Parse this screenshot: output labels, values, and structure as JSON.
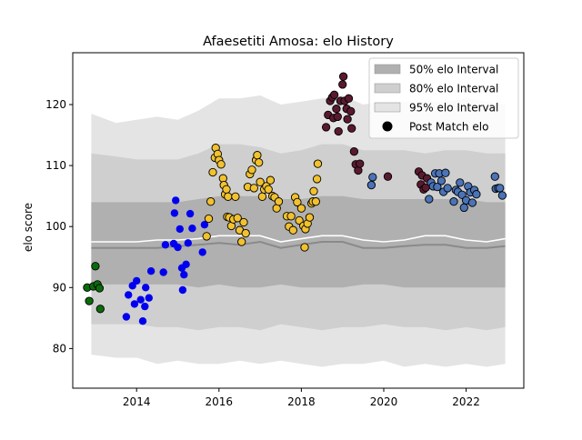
{
  "chart_data": {
    "type": "scatter",
    "title": "Afaesetiti Amosa: elo History",
    "xlabel": "",
    "ylabel": "elo score",
    "xlim": [
      2012.45,
      2023.4
    ],
    "ylim": [
      73.5,
      128.5
    ],
    "x_ticks": [
      2014,
      2016,
      2018,
      2020,
      2022
    ],
    "y_ticks": [
      80,
      90,
      100,
      110,
      120
    ],
    "legend": {
      "position": "top-right",
      "entries": [
        {
          "label": "50% elo Interval",
          "swatch": "#b0b0b0"
        },
        {
          "label": "80% elo Interval",
          "swatch": "#cfcfcf"
        },
        {
          "label": "95% elo Interval",
          "swatch": "#e4e4e4"
        },
        {
          "label": "Post Match elo",
          "swatch": "#000000"
        }
      ]
    },
    "bands": {
      "x": [
        2012.9,
        2013.5,
        2014.0,
        2014.5,
        2015.0,
        2015.5,
        2016.0,
        2016.5,
        2017.0,
        2017.5,
        2018.0,
        2018.5,
        2019.0,
        2019.5,
        2020.0,
        2020.5,
        2021.0,
        2021.5,
        2022.0,
        2022.5,
        2022.95
      ],
      "p95_low": [
        79,
        78.5,
        78.5,
        77.5,
        78,
        77.5,
        77.5,
        78,
        77.5,
        78,
        77.5,
        77,
        77.5,
        77.5,
        78,
        77,
        77.5,
        77,
        77.5,
        77,
        77.5
      ],
      "p95_high": [
        118.5,
        117,
        117.5,
        118,
        117.5,
        119,
        121,
        121,
        121.5,
        120,
        120.5,
        121,
        121.5,
        120,
        120.5,
        120.5,
        120.5,
        120.5,
        121,
        120.5,
        120
      ],
      "p80_low": [
        84,
        84,
        84,
        83.5,
        83.5,
        83,
        83.5,
        83.5,
        83,
        84,
        83.5,
        83,
        83.5,
        83.5,
        84,
        83.5,
        83.5,
        83,
        83.5,
        83,
        83.5
      ],
      "p80_high": [
        112,
        111.5,
        111,
        111,
        111,
        112,
        113.5,
        113.5,
        113,
        112,
        112.5,
        113.5,
        113.5,
        112.5,
        112.5,
        112.5,
        112,
        112.5,
        112.5,
        112,
        112
      ],
      "p50_low": [
        90.5,
        90.5,
        90.5,
        90.5,
        90.5,
        90,
        90.5,
        90,
        90,
        90.5,
        90,
        90,
        90,
        90.5,
        90.5,
        90,
        90,
        90,
        90,
        90,
        90
      ],
      "p50_high": [
        104,
        104,
        104,
        104,
        104,
        104.5,
        105,
        105,
        105,
        104.5,
        104.5,
        105,
        105,
        104.5,
        104.5,
        104.5,
        104.5,
        104.5,
        104.5,
        104,
        104
      ],
      "median": [
        96.5,
        96.5,
        96.5,
        96.5,
        96.8,
        97,
        97.3,
        97,
        97.5,
        96.5,
        97,
        97.5,
        97.5,
        96.5,
        96.5,
        96.8,
        97,
        97,
        96.5,
        96.5,
        96.8
      ],
      "mean": [
        97.5,
        97.5,
        97.5,
        97.8,
        97.8,
        98,
        98.5,
        98.5,
        98.5,
        97.5,
        98,
        98.5,
        98.5,
        97.8,
        97.5,
        97.8,
        98.5,
        98.5,
        97.8,
        97.5,
        98
      ]
    },
    "series": [
      {
        "color": "#0a6b0a",
        "points": [
          [
            2012.8,
            90
          ],
          [
            2012.85,
            87.8
          ],
          [
            2012.95,
            90.2
          ],
          [
            2013.0,
            93.5
          ],
          [
            2013.05,
            90.5
          ],
          [
            2013.1,
            89.9
          ],
          [
            2013.12,
            86.5
          ]
        ]
      },
      {
        "color": "#0000ee",
        "points": [
          [
            2013.75,
            85.2
          ],
          [
            2013.8,
            88.8
          ],
          [
            2013.9,
            90.3
          ],
          [
            2013.95,
            87.3
          ],
          [
            2014.0,
            91.1
          ],
          [
            2014.1,
            88.0
          ],
          [
            2014.15,
            84.5
          ],
          [
            2014.2,
            86.9
          ],
          [
            2014.22,
            90.0
          ],
          [
            2014.3,
            88.3
          ],
          [
            2014.35,
            92.7
          ],
          [
            2014.65,
            92.5
          ],
          [
            2014.7,
            97.0
          ],
          [
            2014.9,
            97.2
          ],
          [
            2014.92,
            102.2
          ],
          [
            2014.95,
            104.3
          ],
          [
            2015.0,
            96.6
          ],
          [
            2015.05,
            99.6
          ],
          [
            2015.1,
            93.2
          ],
          [
            2015.12,
            89.6
          ],
          [
            2015.15,
            92.1
          ],
          [
            2015.2,
            93.8
          ],
          [
            2015.25,
            97.3
          ],
          [
            2015.3,
            102.1
          ],
          [
            2015.35,
            99.7
          ],
          [
            2015.6,
            95.8
          ],
          [
            2015.65,
            100.3
          ]
        ]
      },
      {
        "color": "#f2c12e",
        "points": [
          [
            2015.7,
            98.4
          ],
          [
            2015.75,
            101.3
          ],
          [
            2015.8,
            104.1
          ],
          [
            2015.85,
            108.9
          ],
          [
            2015.9,
            111.3
          ],
          [
            2015.92,
            112.9
          ],
          [
            2015.97,
            111.9
          ],
          [
            2016.0,
            110.9
          ],
          [
            2016.05,
            110.2
          ],
          [
            2016.1,
            107.9
          ],
          [
            2016.12,
            106.8
          ],
          [
            2016.15,
            105.3
          ],
          [
            2016.18,
            106.1
          ],
          [
            2016.2,
            101.6
          ],
          [
            2016.22,
            104.9
          ],
          [
            2016.25,
            101.5
          ],
          [
            2016.3,
            100.1
          ],
          [
            2016.35,
            101.2
          ],
          [
            2016.4,
            104.9
          ],
          [
            2016.45,
            101.4
          ],
          [
            2016.5,
            99.4
          ],
          [
            2016.55,
            97.5
          ],
          [
            2016.6,
            100.7
          ],
          [
            2016.65,
            98.9
          ],
          [
            2016.7,
            106.5
          ],
          [
            2016.75,
            108.6
          ],
          [
            2016.8,
            109.3
          ],
          [
            2016.85,
            106.3
          ],
          [
            2016.9,
            110.9
          ],
          [
            2016.93,
            111.7
          ],
          [
            2016.97,
            110.5
          ],
          [
            2017.0,
            107.3
          ],
          [
            2017.05,
            104.9
          ],
          [
            2017.1,
            106.1
          ],
          [
            2017.15,
            106.6
          ],
          [
            2017.2,
            106.1
          ],
          [
            2017.25,
            107.6
          ],
          [
            2017.3,
            105.0
          ],
          [
            2017.35,
            104.8
          ],
          [
            2017.4,
            103.0
          ],
          [
            2017.45,
            104.1
          ],
          [
            2017.65,
            101.7
          ],
          [
            2017.7,
            100.0
          ],
          [
            2017.75,
            101.7
          ],
          [
            2017.8,
            99.4
          ],
          [
            2017.85,
            104.8
          ],
          [
            2017.9,
            104.0
          ],
          [
            2017.95,
            101.0
          ],
          [
            2018.0,
            103.0
          ],
          [
            2018.05,
            100.1
          ],
          [
            2018.08,
            96.6
          ],
          [
            2018.1,
            99.6
          ],
          [
            2018.15,
            100.5
          ],
          [
            2018.2,
            101.5
          ],
          [
            2018.25,
            103.8
          ],
          [
            2018.28,
            104.1
          ],
          [
            2018.3,
            105.8
          ],
          [
            2018.35,
            104.1
          ],
          [
            2018.38,
            107.8
          ],
          [
            2018.4,
            110.3
          ]
        ]
      },
      {
        "color": "#5a1a2e",
        "points": [
          [
            2018.6,
            116.3
          ],
          [
            2018.65,
            118.3
          ],
          [
            2018.7,
            120.6
          ],
          [
            2018.75,
            121.2
          ],
          [
            2018.78,
            117.8
          ],
          [
            2018.8,
            121.6
          ],
          [
            2018.85,
            119.3
          ],
          [
            2018.88,
            118.0
          ],
          [
            2018.9,
            115.6
          ],
          [
            2018.95,
            120.6
          ],
          [
            2019.0,
            123.3
          ],
          [
            2019.02,
            124.6
          ],
          [
            2019.05,
            120.6
          ],
          [
            2019.1,
            119.3
          ],
          [
            2019.12,
            117.6
          ],
          [
            2019.15,
            121.0
          ],
          [
            2019.2,
            118.9
          ],
          [
            2019.22,
            116.1
          ],
          [
            2019.28,
            112.3
          ],
          [
            2019.32,
            110.2
          ],
          [
            2019.38,
            109.2
          ],
          [
            2019.42,
            110.3
          ],
          [
            2020.1,
            108.2
          ],
          [
            2020.85,
            109.0
          ],
          [
            2020.9,
            106.9
          ],
          [
            2020.93,
            108.4
          ],
          [
            2020.97,
            106.1
          ],
          [
            2021.02,
            106.4
          ],
          [
            2021.05,
            107.9
          ]
        ]
      },
      {
        "color": "#4a73b8",
        "points": [
          [
            2019.7,
            106.8
          ],
          [
            2019.73,
            108.1
          ],
          [
            2021.1,
            104.5
          ],
          [
            2021.15,
            107.2
          ],
          [
            2021.2,
            106.6
          ],
          [
            2021.25,
            108.7
          ],
          [
            2021.3,
            106.5
          ],
          [
            2021.35,
            108.7
          ],
          [
            2021.4,
            107.5
          ],
          [
            2021.45,
            105.7
          ],
          [
            2021.5,
            108.8
          ],
          [
            2021.55,
            106.3
          ],
          [
            2021.7,
            104.1
          ],
          [
            2021.75,
            106.0
          ],
          [
            2021.8,
            105.7
          ],
          [
            2021.85,
            107.2
          ],
          [
            2021.9,
            105.2
          ],
          [
            2021.95,
            103.1
          ],
          [
            2022.0,
            104.3
          ],
          [
            2022.05,
            106.6
          ],
          [
            2022.1,
            105.6
          ],
          [
            2022.15,
            103.9
          ],
          [
            2022.2,
            106.0
          ],
          [
            2022.25,
            105.3
          ],
          [
            2022.7,
            108.2
          ],
          [
            2022.72,
            106.2
          ],
          [
            2022.78,
            106.3
          ],
          [
            2022.82,
            106.3
          ],
          [
            2022.88,
            105.1
          ]
        ]
      }
    ]
  }
}
